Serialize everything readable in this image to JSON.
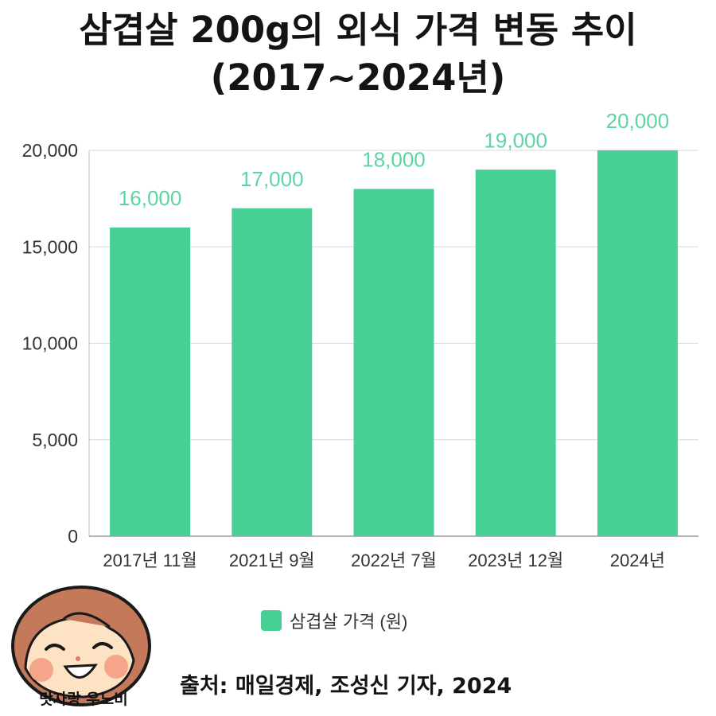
{
  "title_line1": "삼겹살 200g의 외식 가격 변동 추이",
  "title_line2": "(2017~2024년)",
  "chart_data": {
    "type": "bar",
    "categories": [
      "2017년 11월",
      "2021년 9월",
      "2022년 7월",
      "2023년 12월",
      "2024년"
    ],
    "series": [
      {
        "name": "삼겹살 가격 (원)",
        "values": [
          16000,
          17000,
          18000,
          19000,
          20000
        ]
      }
    ],
    "data_labels": [
      "16,000",
      "17,000",
      "18,000",
      "19,000",
      "20,000"
    ],
    "y_ticks": [
      0,
      5000,
      10000,
      15000,
      20000
    ],
    "y_tick_labels": [
      "0",
      "5,000",
      "10,000",
      "15,000",
      "20,000"
    ],
    "ylim": [
      0,
      20000
    ],
    "grid": true,
    "legend_position": "bottom",
    "bar_color": "#48cf96",
    "label_color": "#5ed4a2"
  },
  "legend_label": "삼겹살 가격 (원)",
  "mascot_label": "맛자랑 우노비",
  "source_text": "출처: 매일경제, 조성신 기자, 2024"
}
